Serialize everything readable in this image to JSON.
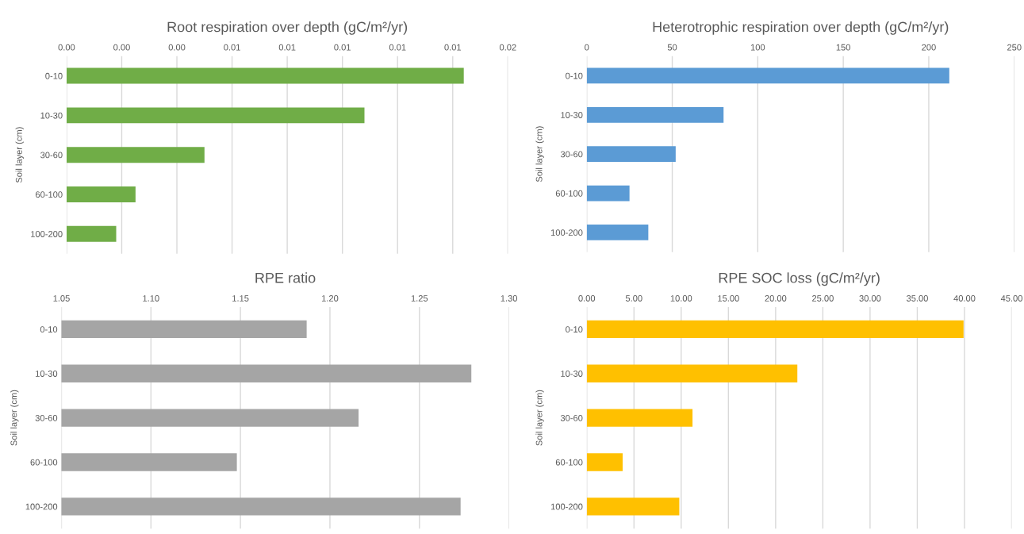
{
  "chart_data": [
    {
      "type": "bar",
      "orientation": "horizontal",
      "title": "Root respiration over depth (gC/m²/yr)",
      "ylabel": "Soil layer (cm)",
      "categories": [
        "0-10",
        "10-30",
        "30-60",
        "60-100",
        "100-200"
      ],
      "values": [
        0.0144,
        0.0108,
        0.005,
        0.0025,
        0.0018
      ],
      "color": "#70ad47",
      "xlim": [
        0,
        0.016
      ],
      "xticks": [
        {
          "value": 0,
          "label": "0.00"
        },
        {
          "value": 0.002,
          "label": "0.00"
        },
        {
          "value": 0.004,
          "label": "0.00"
        },
        {
          "value": 0.006,
          "label": "0.01"
        },
        {
          "value": 0.008,
          "label": "0.01"
        },
        {
          "value": 0.01,
          "label": "0.01"
        },
        {
          "value": 0.012,
          "label": "0.01"
        },
        {
          "value": 0.014,
          "label": "0.01"
        },
        {
          "value": 0.016,
          "label": "0.02"
        }
      ],
      "grid": "x",
      "legend": false
    },
    {
      "type": "bar",
      "orientation": "horizontal",
      "title": "Heterotrophic respiration over depth (gC/m²/yr)",
      "ylabel": "Soil layer (cm)",
      "categories": [
        "0-10",
        "10-30",
        "30-60",
        "60-100",
        "100-200"
      ],
      "values": [
        212,
        80,
        52,
        25,
        36
      ],
      "color": "#5b9bd5",
      "xlim": [
        0,
        250
      ],
      "xticks": [
        0,
        50,
        100,
        150,
        200,
        250
      ],
      "grid": "x",
      "legend": false
    },
    {
      "type": "bar",
      "orientation": "horizontal",
      "title": "RPE ratio",
      "ylabel": "Soil layer (cm)",
      "categories": [
        "0-10",
        "10-30",
        "30-60",
        "60-100",
        "100-200"
      ],
      "values": [
        1.187,
        1.279,
        1.216,
        1.148,
        1.273
      ],
      "color": "#a5a5a5",
      "xlim": [
        1.05,
        1.3
      ],
      "xticks": [
        {
          "value": 1.05,
          "label": "1.05"
        },
        {
          "value": 1.1,
          "label": "1.10"
        },
        {
          "value": 1.15,
          "label": "1.15"
        },
        {
          "value": 1.2,
          "label": "1.20"
        },
        {
          "value": 1.25,
          "label": "1.25"
        },
        {
          "value": 1.3,
          "label": "1.30"
        }
      ],
      "grid": "x",
      "legend": false
    },
    {
      "type": "bar",
      "orientation": "horizontal",
      "title": "RPE SOC loss (gC/m²/yr)",
      "ylabel": "Soil layer (cm)",
      "categories": [
        "0-10",
        "10-30",
        "30-60",
        "60-100",
        "100-200"
      ],
      "values": [
        39.9,
        22.3,
        11.2,
        3.8,
        9.8
      ],
      "color": "#ffc000",
      "xlim": [
        0,
        45
      ],
      "xticks": [
        {
          "value": 0,
          "label": "0.00"
        },
        {
          "value": 5,
          "label": "5.00"
        },
        {
          "value": 10,
          "label": "10.00"
        },
        {
          "value": 15,
          "label": "15.00"
        },
        {
          "value": 20,
          "label": "20.00"
        },
        {
          "value": 25,
          "label": "25.00"
        },
        {
          "value": 30,
          "label": "30.00"
        },
        {
          "value": 35,
          "label": "35.00"
        },
        {
          "value": 40,
          "label": "40.00"
        },
        {
          "value": 45,
          "label": "45.00"
        }
      ],
      "grid": "x",
      "legend": false
    }
  ]
}
